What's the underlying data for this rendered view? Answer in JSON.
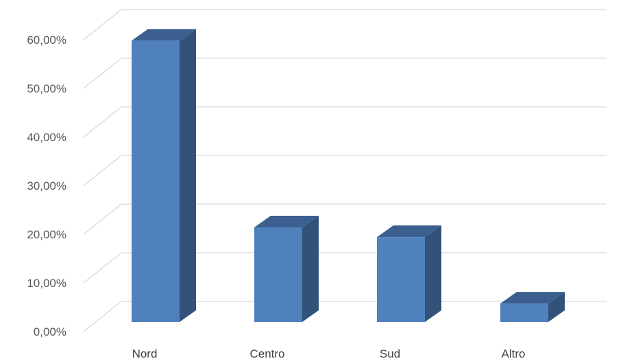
{
  "chart_data": {
    "type": "bar",
    "style": "3d-column",
    "categories": [
      "Nord",
      "Centro",
      "Sud",
      "Altro"
    ],
    "values": [
      58.0,
      19.5,
      17.5,
      3.8
    ],
    "y_ticks": [
      "0,00%",
      "10,00%",
      "20,00%",
      "30,00%",
      "40,00%",
      "50,00%",
      "60,00%"
    ],
    "ylim": [
      0,
      60
    ],
    "grid": true,
    "legend": "none",
    "colors": {
      "bar_front": "#4f81bd",
      "bar_side": "#32527a",
      "bar_top": "#3b5f8f",
      "grid": "#d9d9d9"
    }
  }
}
